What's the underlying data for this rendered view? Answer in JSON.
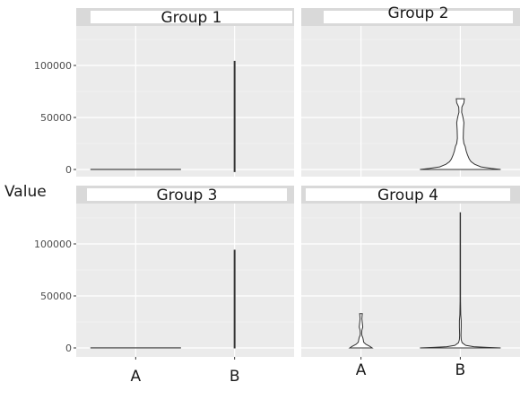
{
  "chart_data": {
    "type": "violin",
    "ylabel": "Value",
    "xlabel": "",
    "categories": [
      "A",
      "B"
    ],
    "y_ticks": [
      0,
      50000,
      100000
    ],
    "y_tick_labels": [
      "0",
      "50000",
      "100000"
    ],
    "ylim": [
      -5000,
      140000
    ],
    "panels": [
      {
        "title": "Group 1",
        "violins": [
          {
            "category": "A",
            "profile": [
              [
                0,
                1
              ],
              [
                150,
                1
              ]
            ]
          },
          {
            "category": "B",
            "profile": [
              [
                -2000,
                0.01
              ],
              [
                104000,
                0.01
              ]
            ]
          }
        ]
      },
      {
        "title": "Group 2",
        "violins": [
          {
            "category": "A",
            "profile": []
          },
          {
            "category": "B",
            "profile": [
              [
                0,
                0.9
              ],
              [
                1000,
                0.7
              ],
              [
                2500,
                0.46
              ],
              [
                5000,
                0.32
              ],
              [
                7500,
                0.24
              ],
              [
                10000,
                0.2
              ],
              [
                14000,
                0.16
              ],
              [
                18000,
                0.13
              ],
              [
                22000,
                0.11
              ],
              [
                25000,
                0.08
              ],
              [
                30000,
                0.065
              ],
              [
                38000,
                0.07
              ],
              [
                45000,
                0.08
              ],
              [
                50000,
                0.06
              ],
              [
                55000,
                0.03
              ],
              [
                60000,
                0.035
              ],
              [
                64000,
                0.08
              ],
              [
                68000,
                0.09
              ]
            ]
          }
        ]
      },
      {
        "title": "Group 3",
        "violins": [
          {
            "category": "A",
            "profile": [
              [
                0,
                1
              ],
              [
                150,
                1
              ]
            ]
          },
          {
            "category": "B",
            "profile": [
              [
                0,
                0.01
              ],
              [
                94000,
                0.01
              ]
            ]
          }
        ]
      },
      {
        "title": "Group 4",
        "violins": [
          {
            "category": "A",
            "profile": [
              [
                0,
                0.25
              ],
              [
                1500,
                0.2
              ],
              [
                3500,
                0.11
              ],
              [
                5500,
                0.06
              ],
              [
                8000,
                0.05
              ],
              [
                10000,
                0.04
              ],
              [
                12000,
                0.02
              ],
              [
                14000,
                0.015
              ],
              [
                17000,
                0.02
              ],
              [
                20000,
                0.04
              ],
              [
                24000,
                0.03
              ],
              [
                28000,
                0.02
              ],
              [
                31000,
                0.025
              ],
              [
                33000,
                0.03
              ]
            ]
          },
          {
            "category": "B",
            "profile": [
              [
                0,
                0.9
              ],
              [
                500,
                0.6
              ],
              [
                1200,
                0.3
              ],
              [
                2500,
                0.12
              ],
              [
                5000,
                0.04
              ],
              [
                8000,
                0.02
              ],
              [
                12000,
                0.015
              ],
              [
                20000,
                0.02
              ],
              [
                26000,
                0.02
              ],
              [
                32000,
                0.01
              ],
              [
                45000,
                0.005
              ],
              [
                130000,
                0.004
              ]
            ]
          }
        ]
      }
    ],
    "grid": true,
    "legend": "none"
  }
}
